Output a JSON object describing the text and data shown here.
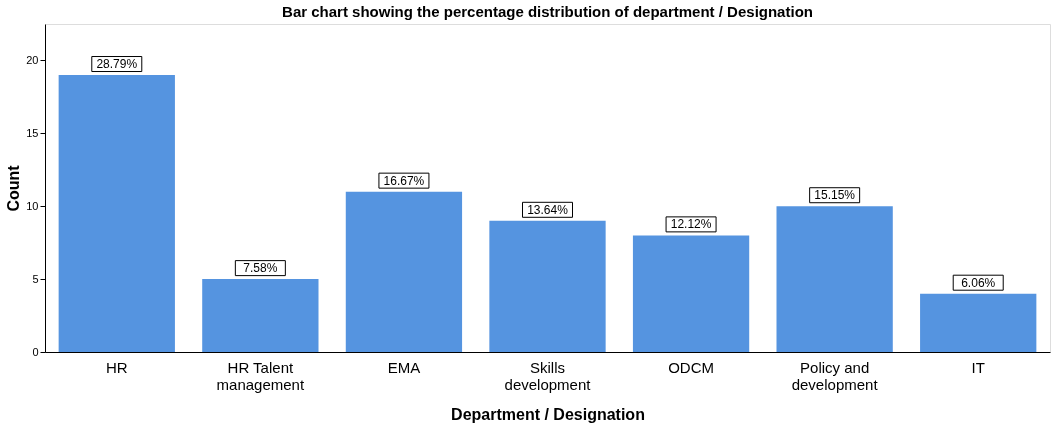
{
  "chart_data": {
    "type": "bar",
    "title": "Bar chart showing the percentage distribution of department / Designation",
    "xlabel": "Department / Designation",
    "ylabel": "Count",
    "categories": [
      "HR",
      "HR Talent management",
      "EMA",
      "Skills development",
      "ODCM",
      "Policy and development",
      "IT"
    ],
    "values": [
      19,
      5,
      11,
      9,
      8,
      10,
      4
    ],
    "color": "#5594e0",
    "annotations": [
      {
        "text": "28.79%",
        "x": "HR",
        "y": 19
      },
      {
        "text": "7.58%",
        "x": "HR Talent management",
        "y": 5
      },
      {
        "text": "16.67%",
        "x": "EMA",
        "y": 11
      },
      {
        "text": "13.64%",
        "x": "Skills development",
        "y": 9
      },
      {
        "text": "12.12%",
        "x": "ODCM",
        "y": 8
      },
      {
        "text": "15.15%",
        "x": "Policy and development",
        "y": 10
      },
      {
        "text": "6.06%",
        "x": "IT",
        "y": 4
      }
    ],
    "ylim": [
      0,
      22.5
    ],
    "yticks": [
      0,
      5,
      10,
      15,
      20
    ],
    "grid": false
  }
}
